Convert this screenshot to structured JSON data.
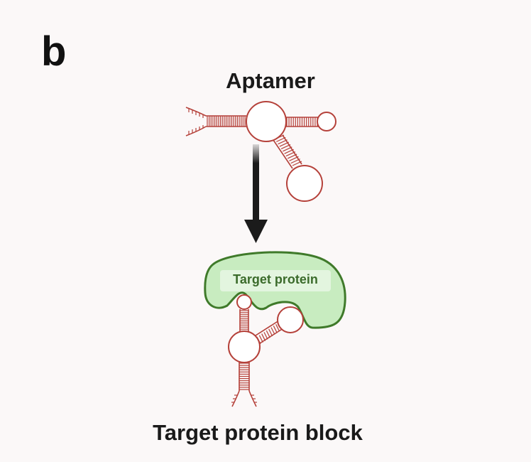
{
  "panel": {
    "letter": "b"
  },
  "labels": {
    "aptamer": "Aptamer",
    "target_protein": "Target protein",
    "caption": "Target protein block"
  },
  "colors": {
    "rna_stroke": "#b5413a",
    "protein_fill": "#c8ecc0",
    "protein_stroke": "#3f7a2a",
    "protein_label": "#3b6b2b",
    "arrow": "#1b1b1b",
    "background": "#fbf8f8"
  },
  "icons": {
    "arrow": "down-arrow-icon"
  }
}
